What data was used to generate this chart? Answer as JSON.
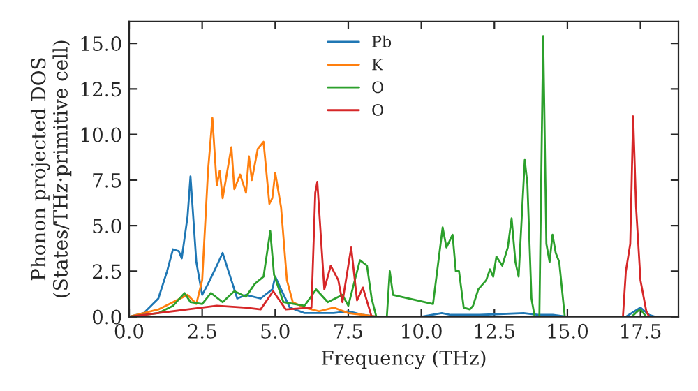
{
  "chart_data": {
    "type": "line",
    "xlabel": "Frequency (THz)",
    "ylabel": "Phonon projected DOS\n(States/THz·primitive cell)",
    "xlim": [
      0,
      18.8
    ],
    "ylim": [
      0,
      16.2
    ],
    "xticks": [
      {
        "value": 0,
        "label": "0.0"
      },
      {
        "value": 2.5,
        "label": "2.5"
      },
      {
        "value": 5,
        "label": "5.0"
      },
      {
        "value": 7.5,
        "label": "7.5"
      },
      {
        "value": 10,
        "label": "10.0"
      },
      {
        "value": 12.5,
        "label": "12.5"
      },
      {
        "value": 15,
        "label": "15.0"
      },
      {
        "value": 17.5,
        "label": "17.5"
      }
    ],
    "yticks": [
      {
        "value": 0,
        "label": "0.0"
      },
      {
        "value": 2.5,
        "label": "2.5"
      },
      {
        "value": 5,
        "label": "5.0"
      },
      {
        "value": 7.5,
        "label": "7.5"
      },
      {
        "value": 10,
        "label": "10.0"
      },
      {
        "value": 12.5,
        "label": "12.5"
      },
      {
        "value": 15,
        "label": "15.0"
      }
    ],
    "legend": "top",
    "grid": false,
    "series": [
      {
        "name": "Pb",
        "color": "#1f77b4",
        "x": [
          0,
          0.5,
          1.0,
          1.3,
          1.5,
          1.7,
          1.8,
          2.0,
          2.1,
          2.3,
          2.5,
          2.7,
          3.0,
          3.2,
          3.4,
          3.7,
          4.0,
          4.5,
          4.9,
          5.0,
          5.2,
          5.5,
          6.0,
          7.0,
          7.5,
          8.0,
          8.5,
          10.0,
          10.7,
          11.0,
          12.0,
          13.5,
          14.0,
          14.5,
          15.0,
          17.0,
          17.5,
          17.8,
          18.0
        ],
        "values": [
          0,
          0.2,
          1.0,
          2.5,
          3.7,
          3.6,
          3.2,
          5.5,
          7.7,
          3.0,
          1.2,
          1.8,
          2.8,
          3.5,
          2.5,
          1.0,
          1.2,
          1.0,
          1.5,
          2.2,
          1.5,
          0.5,
          0.2,
          0.2,
          0.3,
          0.1,
          0,
          0,
          0.2,
          0.1,
          0.1,
          0.2,
          0.1,
          0.1,
          0,
          0,
          0.5,
          0.1,
          0
        ]
      },
      {
        "name": "K",
        "color": "#ff7f0e",
        "x": [
          0,
          1.0,
          1.5,
          2.0,
          2.3,
          2.5,
          2.7,
          2.85,
          3.0,
          3.1,
          3.2,
          3.5,
          3.6,
          3.8,
          4.0,
          4.1,
          4.2,
          4.4,
          4.6,
          4.8,
          4.9,
          5.0,
          5.2,
          5.4,
          5.6,
          6.0,
          6.5,
          7.0,
          7.5,
          8.0,
          8.5
        ],
        "values": [
          0,
          0.4,
          0.8,
          1.2,
          0.7,
          2.0,
          8.0,
          10.9,
          7.2,
          8.0,
          6.5,
          9.3,
          7.0,
          7.8,
          6.8,
          8.8,
          7.5,
          9.2,
          9.6,
          6.2,
          6.5,
          7.9,
          6.0,
          2.0,
          0.8,
          0.5,
          0.3,
          0.5,
          0.2,
          0.1,
          0
        ]
      },
      {
        "name": "O",
        "color": "#2ca02c",
        "x": [
          0,
          1.0,
          1.5,
          1.9,
          2.1,
          2.5,
          2.8,
          3.2,
          3.6,
          4.0,
          4.3,
          4.6,
          4.83,
          4.96,
          5.28,
          6.0,
          6.4,
          6.8,
          7.3,
          7.5,
          7.9,
          8.14,
          8.3,
          8.46,
          8.82,
          8.92,
          9.03,
          10.4,
          10.73,
          10.86,
          11.07,
          11.18,
          11.29,
          11.45,
          11.66,
          11.77,
          11.95,
          12.22,
          12.35,
          12.46,
          12.57,
          12.77,
          12.96,
          13.09,
          13.22,
          13.33,
          13.54,
          13.63,
          13.77,
          13.88,
          14.04,
          14.17,
          14.28,
          14.39,
          14.49,
          14.6,
          14.72,
          14.91,
          17.2,
          17.4,
          17.5,
          17.7
        ],
        "values": [
          0,
          0.2,
          0.6,
          1.3,
          0.8,
          0.7,
          1.3,
          0.8,
          1.4,
          1.1,
          1.8,
          2.2,
          4.7,
          2.3,
          0.8,
          0.6,
          1.5,
          0.8,
          1.2,
          0.6,
          3.1,
          2.8,
          1.0,
          0,
          0,
          2.5,
          1.2,
          0.7,
          4.9,
          3.8,
          4.5,
          2.5,
          2.5,
          0.5,
          0.4,
          0.6,
          1.5,
          2.0,
          2.6,
          2.2,
          3.3,
          2.8,
          3.8,
          5.4,
          3.0,
          2.2,
          8.6,
          7.3,
          1.0,
          0,
          0,
          15.4,
          4.0,
          3.0,
          4.5,
          3.5,
          3.0,
          0,
          0,
          0.3,
          0.4,
          0
        ]
      },
      {
        "name": "O",
        "color": "#d62728",
        "x": [
          0,
          1.0,
          2.0,
          3.0,
          4.0,
          4.5,
          4.93,
          5.36,
          6.24,
          6.37,
          6.44,
          6.68,
          6.9,
          7.16,
          7.3,
          7.6,
          7.8,
          8.0,
          8.3,
          16.9,
          17.0,
          17.15,
          17.25,
          17.35,
          17.5,
          17.7,
          17.8
        ],
        "values": [
          0,
          0.2,
          0.4,
          0.6,
          0.5,
          0.4,
          1.4,
          0.4,
          0.5,
          6.8,
          7.4,
          1.5,
          2.8,
          2.0,
          0.8,
          3.8,
          0.9,
          1.6,
          0,
          0,
          2.5,
          4.0,
          11.0,
          6.0,
          2.0,
          0.3,
          0
        ]
      }
    ]
  }
}
